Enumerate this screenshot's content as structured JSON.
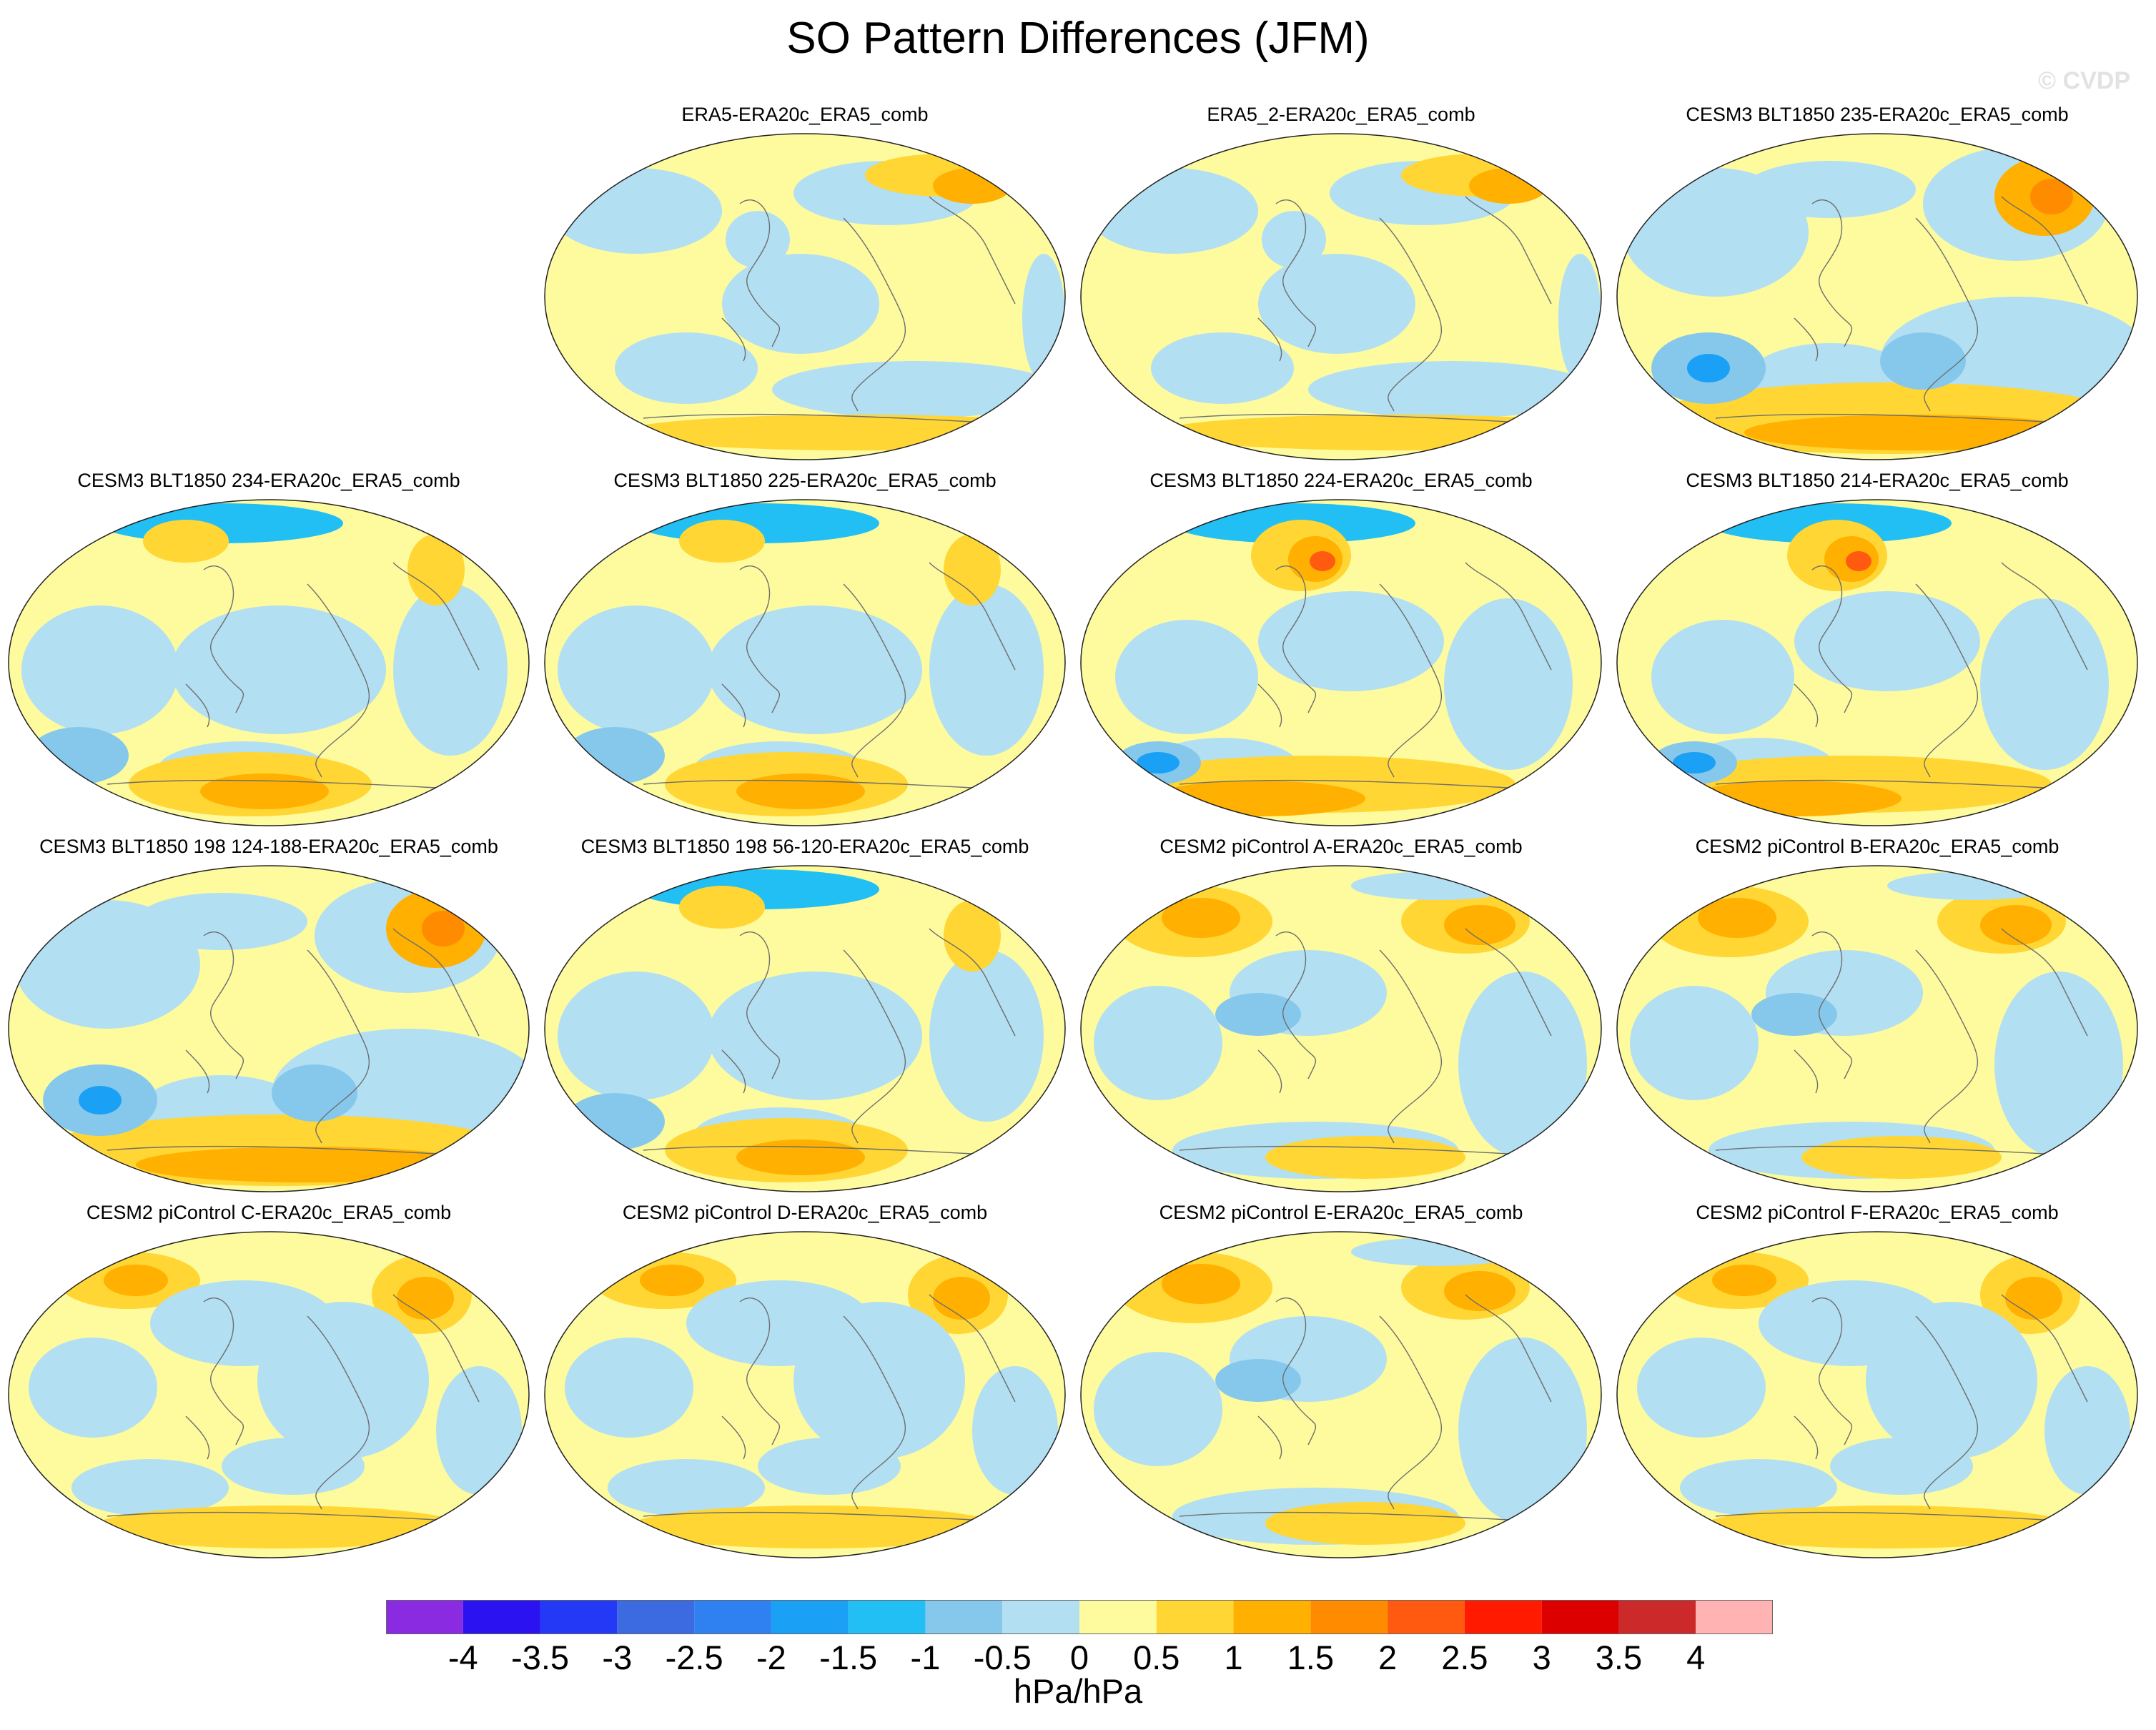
{
  "title": "SO Pattern Differences (JFM)",
  "watermark": "© CVDP",
  "units": "hPa/hPa",
  "colorbar": {
    "labels": [
      "-4",
      "-3.5",
      "-3",
      "-2.5",
      "-2",
      "-1.5",
      "-1",
      "-0.5",
      "0",
      "0.5",
      "1",
      "1.5",
      "2",
      "2.5",
      "3",
      "3.5",
      "4"
    ],
    "colors": [
      "#8a2be2",
      "#2a13f0",
      "#2339f5",
      "#3c6ae0",
      "#2f80f0",
      "#1aa0f5",
      "#22bff5",
      "#86c8ec",
      "#b3dff2",
      "#fdfb9e",
      "#ffd633",
      "#ffb000",
      "#ff8c00",
      "#ff5a10",
      "#ff1a00",
      "#dd0000",
      "#cc2a2a",
      "#ffb3b3"
    ]
  },
  "panels": [
    {
      "title": "ERA5-ERA20c_ERA5_comb",
      "scheme": 0
    },
    {
      "title": "ERA5_2-ERA20c_ERA5_comb",
      "scheme": 0
    },
    {
      "title": "CESM3 BLT1850 235-ERA20c_ERA5_comb",
      "scheme": 1
    },
    {
      "title": "CESM3 BLT1850 234-ERA20c_ERA5_comb",
      "scheme": 2
    },
    {
      "title": "CESM3 BLT1850 225-ERA20c_ERA5_comb",
      "scheme": 2
    },
    {
      "title": "CESM3 BLT1850 224-ERA20c_ERA5_comb",
      "scheme": 3
    },
    {
      "title": "CESM3 BLT1850 214-ERA20c_ERA5_comb",
      "scheme": 3
    },
    {
      "title": "CESM3 BLT1850 198 124-188-ERA20c_ERA5_comb",
      "scheme": 1
    },
    {
      "title": "CESM3 BLT1850 198 56-120-ERA20c_ERA5_comb",
      "scheme": 2
    },
    {
      "title": "CESM2 piControl A-ERA20c_ERA5_comb",
      "scheme": 4
    },
    {
      "title": "CESM2 piControl B-ERA20c_ERA5_comb",
      "scheme": 4
    },
    {
      "title": "CESM2 piControl C-ERA20c_ERA5_comb",
      "scheme": 5
    },
    {
      "title": "CESM2 piControl D-ERA20c_ERA5_comb",
      "scheme": 5
    },
    {
      "title": "CESM2 piControl E-ERA20c_ERA5_comb",
      "scheme": 4
    },
    {
      "title": "CESM2 piControl F-ERA20c_ERA5_comb",
      "scheme": 5
    }
  ]
}
